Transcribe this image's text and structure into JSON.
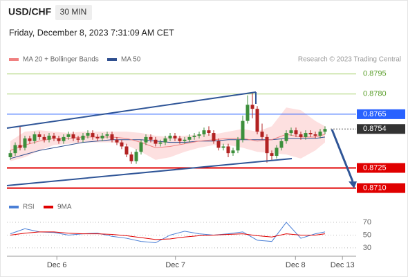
{
  "chart_data": {
    "type": "candlestick",
    "symbol": "USD/CHF",
    "timeframe": "30 MIN",
    "timestamp": "Friday, December 8, 2023 7:31:09 AM CET",
    "legend": [
      "MA 20 + Bollinger Bands",
      "MA 50"
    ],
    "credit": "Research © 2023 Trading Central",
    "colors": {
      "up": "#3c8f3c",
      "down": "#b22222",
      "ma20": "#f08080",
      "band": "#fde0e0",
      "ma50": "#2f4f8f"
    },
    "xlim": [
      -1,
      71
    ],
    "xticks": [
      {
        "value": 9.6,
        "label": "Dec 6"
      },
      {
        "value": 34.1,
        "label": "Dec 7"
      },
      {
        "value": 58.9,
        "label": "Dec 8"
      },
      {
        "value": 68.6,
        "label": "Dec 13"
      }
    ],
    "ylim": [
      0.87,
      0.88
    ],
    "levels": [
      {
        "value": 0.8795,
        "color": "#8dc63f",
        "boxed": false,
        "dashed": false
      },
      {
        "value": {
          "value": 0.878,
          "label": "0.8780"
        },
        "color": "#8dc63f",
        "boxed": false,
        "dashed": false
      },
      {
        "value": 0.8765,
        "color": "#2962ff",
        "boxed": true,
        "dashed": false
      },
      {
        "value": 0.8754,
        "color": "#333333",
        "boxed": true,
        "dashed": true
      },
      {
        "value": 0.8725,
        "color": "#e00000",
        "boxed": true,
        "dashed": false
      },
      {
        "value": {
          "value": 0.871,
          "label": "0.8710"
        },
        "color": "#e00000",
        "boxed": true,
        "dashed": false
      }
    ],
    "candles": [
      [
        0.8733,
        0.8738,
        0.8731,
        0.8736
      ],
      [
        0.8736,
        0.8744,
        0.8734,
        0.8742
      ],
      [
        0.8742,
        0.8756,
        0.8738,
        0.874
      ],
      [
        0.874,
        0.8749,
        0.8738,
        0.8747
      ],
      [
        0.8747,
        0.8749,
        0.8743,
        0.8745
      ],
      [
        0.8745,
        0.8752,
        0.8743,
        0.875
      ],
      [
        0.875,
        0.8752,
        0.8746,
        0.8748
      ],
      [
        0.8748,
        0.875,
        0.8744,
        0.8746
      ],
      [
        0.8746,
        0.8751,
        0.8744,
        0.8749
      ],
      [
        0.8749,
        0.8751,
        0.8745,
        0.8747
      ],
      [
        0.8747,
        0.8749,
        0.8743,
        0.8745
      ],
      [
        0.8745,
        0.875,
        0.8743,
        0.8748
      ],
      [
        0.8748,
        0.8752,
        0.8746,
        0.875
      ],
      [
        0.875,
        0.8752,
        0.8745,
        0.8747
      ],
      [
        0.8747,
        0.8749,
        0.8744,
        0.8746
      ],
      [
        0.8746,
        0.8751,
        0.8744,
        0.8749
      ],
      [
        0.8749,
        0.8753,
        0.8747,
        0.8751
      ],
      [
        0.8751,
        0.8753,
        0.8746,
        0.8748
      ],
      [
        0.8748,
        0.875,
        0.8745,
        0.8747
      ],
      [
        0.8747,
        0.8751,
        0.8745,
        0.8749
      ],
      [
        0.8749,
        0.8752,
        0.8747,
        0.875
      ],
      [
        0.875,
        0.8752,
        0.8744,
        0.8746
      ],
      [
        0.8746,
        0.8748,
        0.8742,
        0.8744
      ],
      [
        0.8744,
        0.8746,
        0.8739,
        0.8741
      ],
      [
        0.8741,
        0.8743,
        0.8733,
        0.8735
      ],
      [
        0.8735,
        0.8737,
        0.8728,
        0.873
      ],
      [
        0.873,
        0.8739,
        0.8728,
        0.8737
      ],
      [
        0.8737,
        0.8746,
        0.8735,
        0.8744
      ],
      [
        0.8744,
        0.875,
        0.8742,
        0.8748
      ],
      [
        0.8748,
        0.875,
        0.8744,
        0.8746
      ],
      [
        0.8746,
        0.8748,
        0.8741,
        0.8743
      ],
      [
        0.8743,
        0.8746,
        0.8741,
        0.8744
      ],
      [
        0.8744,
        0.8749,
        0.8742,
        0.8747
      ],
      [
        0.8747,
        0.8751,
        0.8745,
        0.8749
      ],
      [
        0.8749,
        0.8751,
        0.8745,
        0.8747
      ],
      [
        0.8747,
        0.8749,
        0.8743,
        0.8745
      ],
      [
        0.8745,
        0.8748,
        0.8743,
        0.8746
      ],
      [
        0.8746,
        0.875,
        0.8744,
        0.8748
      ],
      [
        0.8748,
        0.8751,
        0.8746,
        0.8749
      ],
      [
        0.8749,
        0.8752,
        0.8747,
        0.875
      ],
      [
        0.875,
        0.8755,
        0.8748,
        0.8753
      ],
      [
        0.8753,
        0.8756,
        0.8749,
        0.8751
      ],
      [
        0.8751,
        0.8753,
        0.8743,
        0.8745
      ],
      [
        0.8745,
        0.8747,
        0.8738,
        0.874
      ],
      [
        0.874,
        0.8743,
        0.8738,
        0.8741
      ],
      [
        0.8741,
        0.8743,
        0.8733,
        0.8736
      ],
      [
        0.8736,
        0.874,
        0.8734,
        0.8738
      ],
      [
        0.8738,
        0.8748,
        0.8736,
        0.8746
      ],
      [
        0.8746,
        0.8764,
        0.8744,
        0.876
      ],
      [
        0.876,
        0.8779,
        0.8758,
        0.8772
      ],
      [
        0.8772,
        0.8781,
        0.8762,
        0.8769
      ],
      [
        0.8769,
        0.8771,
        0.875,
        0.8752
      ],
      [
        0.8752,
        0.8758,
        0.8746,
        0.8748
      ],
      [
        0.8748,
        0.875,
        0.8729,
        0.8736
      ],
      [
        0.8736,
        0.8738,
        0.8731,
        0.8734
      ],
      [
        0.8734,
        0.8742,
        0.8732,
        0.874
      ],
      [
        0.874,
        0.8747,
        0.8738,
        0.8745
      ],
      [
        0.8745,
        0.8753,
        0.8743,
        0.8751
      ],
      [
        0.8751,
        0.8755,
        0.8749,
        0.8753
      ],
      [
        0.8753,
        0.8755,
        0.8748,
        0.875
      ],
      [
        0.875,
        0.8752,
        0.8746,
        0.8748
      ],
      [
        0.8748,
        0.8753,
        0.8746,
        0.8751
      ],
      [
        0.8751,
        0.8753,
        0.8748,
        0.875
      ],
      [
        0.875,
        0.8752,
        0.8747,
        0.8749
      ],
      [
        0.8749,
        0.8754,
        0.8747,
        0.8752
      ],
      [
        0.8752,
        0.8756,
        0.875,
        0.8754
      ]
    ],
    "indicator_x": [
      0,
      3,
      6,
      9,
      12,
      15,
      18,
      21,
      24,
      27,
      30,
      33,
      36,
      39,
      42,
      45,
      48,
      51,
      54,
      57,
      60,
      63,
      65
    ],
    "ma20": [
      0.8738,
      0.8742,
      0.8745,
      0.8747,
      0.8747,
      0.8748,
      0.8748,
      0.8748,
      0.8747,
      0.8744,
      0.874,
      0.8741,
      0.8743,
      0.8745,
      0.8746,
      0.8747,
      0.8747,
      0.8745,
      0.8746,
      0.875,
      0.8748,
      0.8748,
      0.875
    ],
    "bollinger_upper": [
      0.8745,
      0.8752,
      0.8753,
      0.8752,
      0.8751,
      0.8752,
      0.8752,
      0.8752,
      0.8752,
      0.8751,
      0.8749,
      0.8748,
      0.8749,
      0.875,
      0.875,
      0.8752,
      0.8754,
      0.8752,
      0.8756,
      0.877,
      0.8768,
      0.876,
      0.8756
    ],
    "bollinger_lower": [
      0.873,
      0.8733,
      0.8738,
      0.8742,
      0.8743,
      0.8744,
      0.8744,
      0.8744,
      0.8742,
      0.8737,
      0.8731,
      0.8733,
      0.8737,
      0.874,
      0.8742,
      0.8742,
      0.874,
      0.8737,
      0.8736,
      0.8735,
      0.8732,
      0.8738,
      0.8744
    ],
    "ma50": [
      0.8732,
      0.8735,
      0.8738,
      0.874,
      0.8742,
      0.8744,
      0.8745,
      0.8746,
      0.8746,
      0.8746,
      0.8745,
      0.8744,
      0.8744,
      0.8745,
      0.8745,
      0.8746,
      0.8746,
      0.8746,
      0.8746,
      0.8747,
      0.8747,
      0.8747,
      0.8748
    ],
    "rsi_panel": {
      "ylim": [
        19,
        82
      ],
      "yticks": [
        30,
        50,
        70
      ],
      "series": [
        {
          "name": "RSI",
          "color": "#4a7fd6",
          "values": [
            52,
            60,
            55,
            54,
            50,
            52,
            53,
            48,
            45,
            40,
            38,
            50,
            56,
            52,
            50,
            52,
            55,
            42,
            40,
            70,
            45,
            52,
            55
          ]
        },
        {
          "name": "9MA",
          "color": "#e00000",
          "values": [
            50,
            53,
            55,
            55,
            53,
            52,
            52,
            51,
            49,
            46,
            43,
            44,
            47,
            49,
            50,
            51,
            52,
            49,
            47,
            52,
            50,
            50,
            52
          ]
        }
      ]
    }
  }
}
